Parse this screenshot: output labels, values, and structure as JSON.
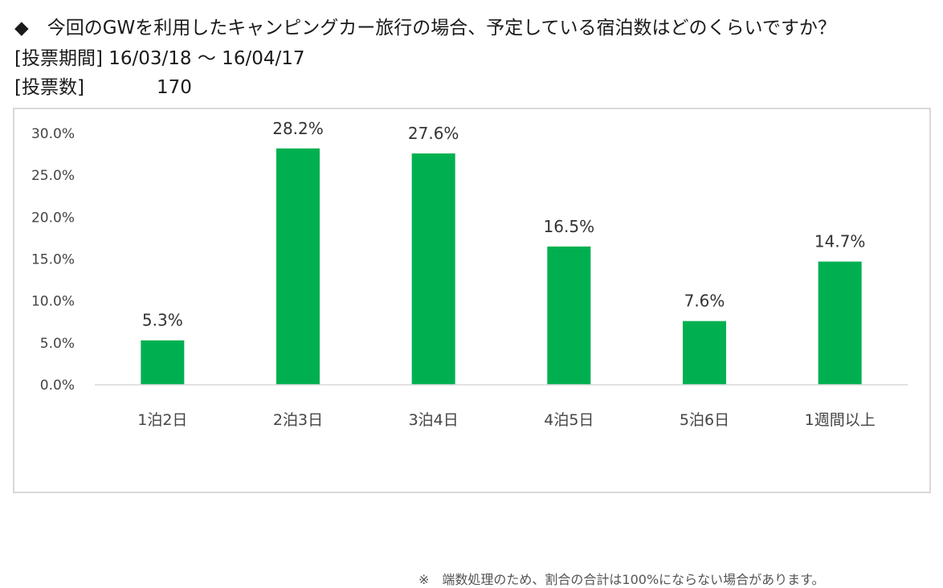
{
  "header": {
    "title": "◆　今回のGWを利用したキャンピングカー旅行の場合、予定している宿泊数はどのくらいですか？",
    "period_label": "[投票期間]",
    "period_value": "16/03/18 ～ 16/04/17",
    "votes_label": "[投票数]",
    "votes_value": "170"
  },
  "chart_data": {
    "type": "bar",
    "categories": [
      "1泊2日",
      "2泊3日",
      "3泊4日",
      "4泊5日",
      "5泊6日",
      "1週間以上"
    ],
    "values": [
      5.3,
      28.2,
      27.6,
      16.5,
      7.6,
      14.7
    ],
    "data_labels": [
      "5.3%",
      "28.2%",
      "27.6%",
      "16.5%",
      "7.6%",
      "14.7%"
    ],
    "y_ticks": [
      "0.0%",
      "5.0%",
      "10.0%",
      "15.0%",
      "20.0%",
      "25.0%",
      "30.0%"
    ],
    "ylim": [
      0,
      30
    ],
    "bar_color": "#00b050",
    "grid": false,
    "legend": "none"
  },
  "footnote": "※　端数処理のため、割合の合計は100%にならない場合があります。"
}
